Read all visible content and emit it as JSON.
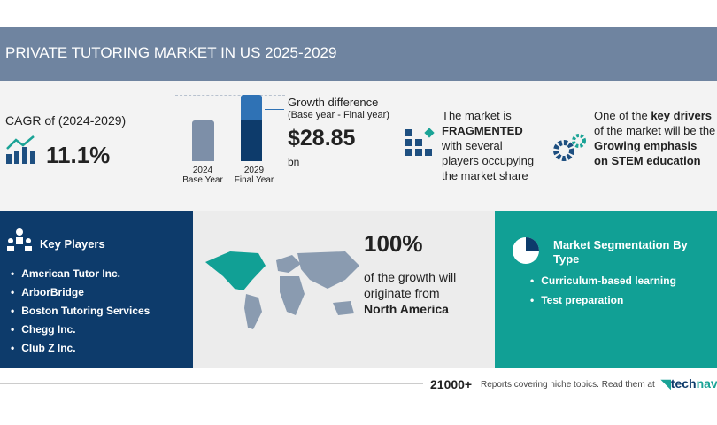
{
  "title": "PRIVATE TUTORING MARKET IN US 2025-2029",
  "cagr": {
    "label": "CAGR of (2024-2029)",
    "value": "11.1%",
    "icon": "growth-chart-icon"
  },
  "growth": {
    "title": "Growth difference",
    "subtitle": "(Base year - Final year)",
    "value": "$28.85",
    "unit": "bn",
    "bars": [
      {
        "year": "2024",
        "label": "Base Year"
      },
      {
        "year": "2029",
        "label": "Final Year"
      }
    ]
  },
  "market": {
    "line1": "The market is",
    "bold": "FRAGMENTED",
    "line2": "with several",
    "line3": "players occupying",
    "line4": "the market share",
    "icon": "blocks-icon"
  },
  "drivers": {
    "line1": "One of the ",
    "bold1": "key drivers",
    "line2": "of the market will be the",
    "bold2": "Growing emphasis",
    "bold3": "on STEM education",
    "icon": "gears-icon"
  },
  "key_players": {
    "title": "Key Players",
    "items": [
      "American Tutor Inc.",
      "ArborBridge",
      "Boston Tutoring Services",
      "Chegg Inc.",
      "Club Z Inc."
    ]
  },
  "geo": {
    "value": "100%",
    "line1": "of the growth will",
    "line2": "originate from",
    "region": "North America"
  },
  "segmentation": {
    "title": "Market Segmentation By Type",
    "items": [
      "Curriculum-based learning",
      "Test preparation"
    ]
  },
  "footer": {
    "count": "21000+",
    "text": "Reports covering niche topics. Read them at",
    "brand1": "tech",
    "brand2": "navi"
  },
  "colors": {
    "header": "#6f84a0",
    "navy": "#0d3b6b",
    "teal": "#11a095",
    "base_bar": "#7d8fa8",
    "final_bar_top": "#2f72b5"
  }
}
